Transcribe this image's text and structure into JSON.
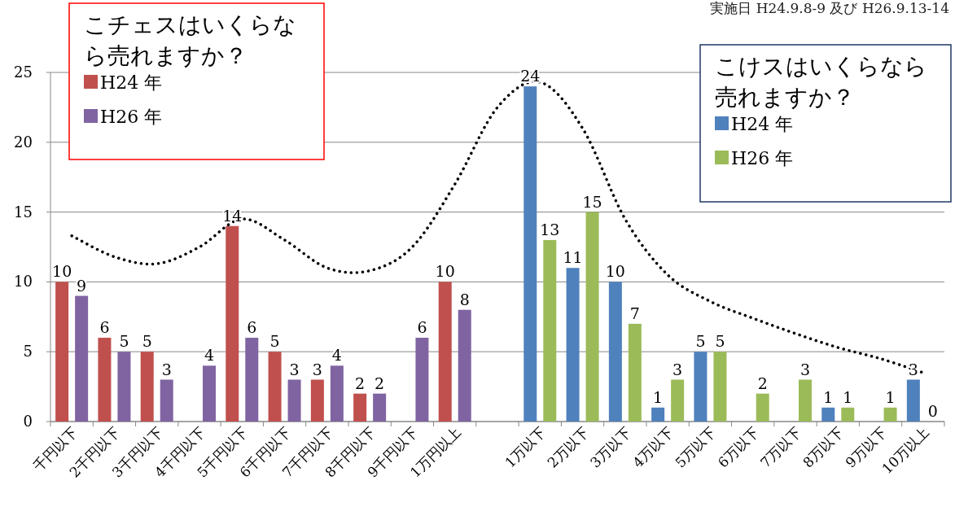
{
  "chart_data": {
    "type": "bar",
    "subtitle": "実施日 H24.9.8-9 及び H26.9.13-14",
    "categories": [
      "千円以下",
      "2千円以下",
      "3千円以下",
      "4千円以下",
      "5千円以下",
      "6千円以下",
      "7千円以下",
      "8千円以下",
      "9千円以下",
      "1万円以上",
      null,
      "1万以下",
      "2万以下",
      "3万以下",
      "4万以下",
      "5万以下",
      "6万以下",
      "7万以下",
      "8万以下",
      "9万以下",
      "10万以上"
    ],
    "series": [
      {
        "name": "H24 年",
        "color": "#c0504d",
        "values": [
          10,
          6,
          5,
          null,
          14,
          5,
          3,
          2,
          null,
          10,
          null,
          null,
          null,
          null,
          null,
          null,
          null,
          null,
          null,
          null,
          null
        ],
        "value_labels": [
          "10",
          "6",
          "5",
          null,
          "14",
          "5",
          "3",
          "2",
          null,
          "10",
          null,
          null,
          null,
          null,
          null,
          null,
          null,
          null,
          null,
          null,
          null
        ]
      },
      {
        "name": "H26 年",
        "color": "#8064a2",
        "values": [
          9,
          5,
          3,
          4,
          6,
          3,
          4,
          2,
          6,
          8,
          null,
          null,
          null,
          null,
          null,
          null,
          null,
          null,
          null,
          null,
          null
        ],
        "value_labels": [
          "9",
          "5",
          "3",
          "4",
          "6",
          "3",
          "4",
          "2",
          "6",
          "8",
          null,
          null,
          null,
          null,
          null,
          null,
          null,
          null,
          null,
          null,
          null
        ]
      },
      {
        "name": "H24 年",
        "color": "#4f81bd",
        "values": [
          null,
          null,
          null,
          null,
          null,
          null,
          null,
          null,
          null,
          null,
          null,
          24,
          11,
          10,
          1,
          5,
          null,
          null,
          1,
          null,
          3
        ],
        "value_labels": [
          null,
          null,
          null,
          null,
          null,
          null,
          null,
          null,
          null,
          null,
          null,
          "24",
          "11",
          "10",
          "1",
          "5",
          null,
          null,
          "1",
          null,
          "3"
        ]
      },
      {
        "name": "H26 年",
        "color": "#9bbb59",
        "values": [
          null,
          null,
          null,
          null,
          null,
          null,
          null,
          null,
          null,
          null,
          null,
          13,
          15,
          7,
          3,
          5,
          2,
          3,
          1,
          1,
          0
        ],
        "value_labels": [
          null,
          null,
          null,
          null,
          null,
          null,
          null,
          null,
          null,
          null,
          null,
          "13",
          "15",
          "7",
          "3",
          "5",
          "2",
          "3",
          "1",
          "1",
          "0"
        ]
      },
      {
        "type": "line",
        "color": "#000000",
        "line_style": "dotted",
        "values": [
          13.3,
          11.8,
          11.3,
          12.5,
          14.5,
          13,
          11,
          10.8,
          12.5,
          17,
          22.5,
          24.3,
          21,
          14.5,
          10.5,
          8.6,
          7.4,
          6.3,
          5.3,
          4.5,
          3.5
        ]
      }
    ],
    "annotations": [
      "こチェスはいくらなら売れますか？",
      "こけスはいくらなら売れますか？"
    ],
    "ylim": [
      0,
      25
    ],
    "yticks": [
      0,
      5,
      10,
      15,
      20,
      25
    ],
    "grid": "y",
    "legend": "top"
  }
}
